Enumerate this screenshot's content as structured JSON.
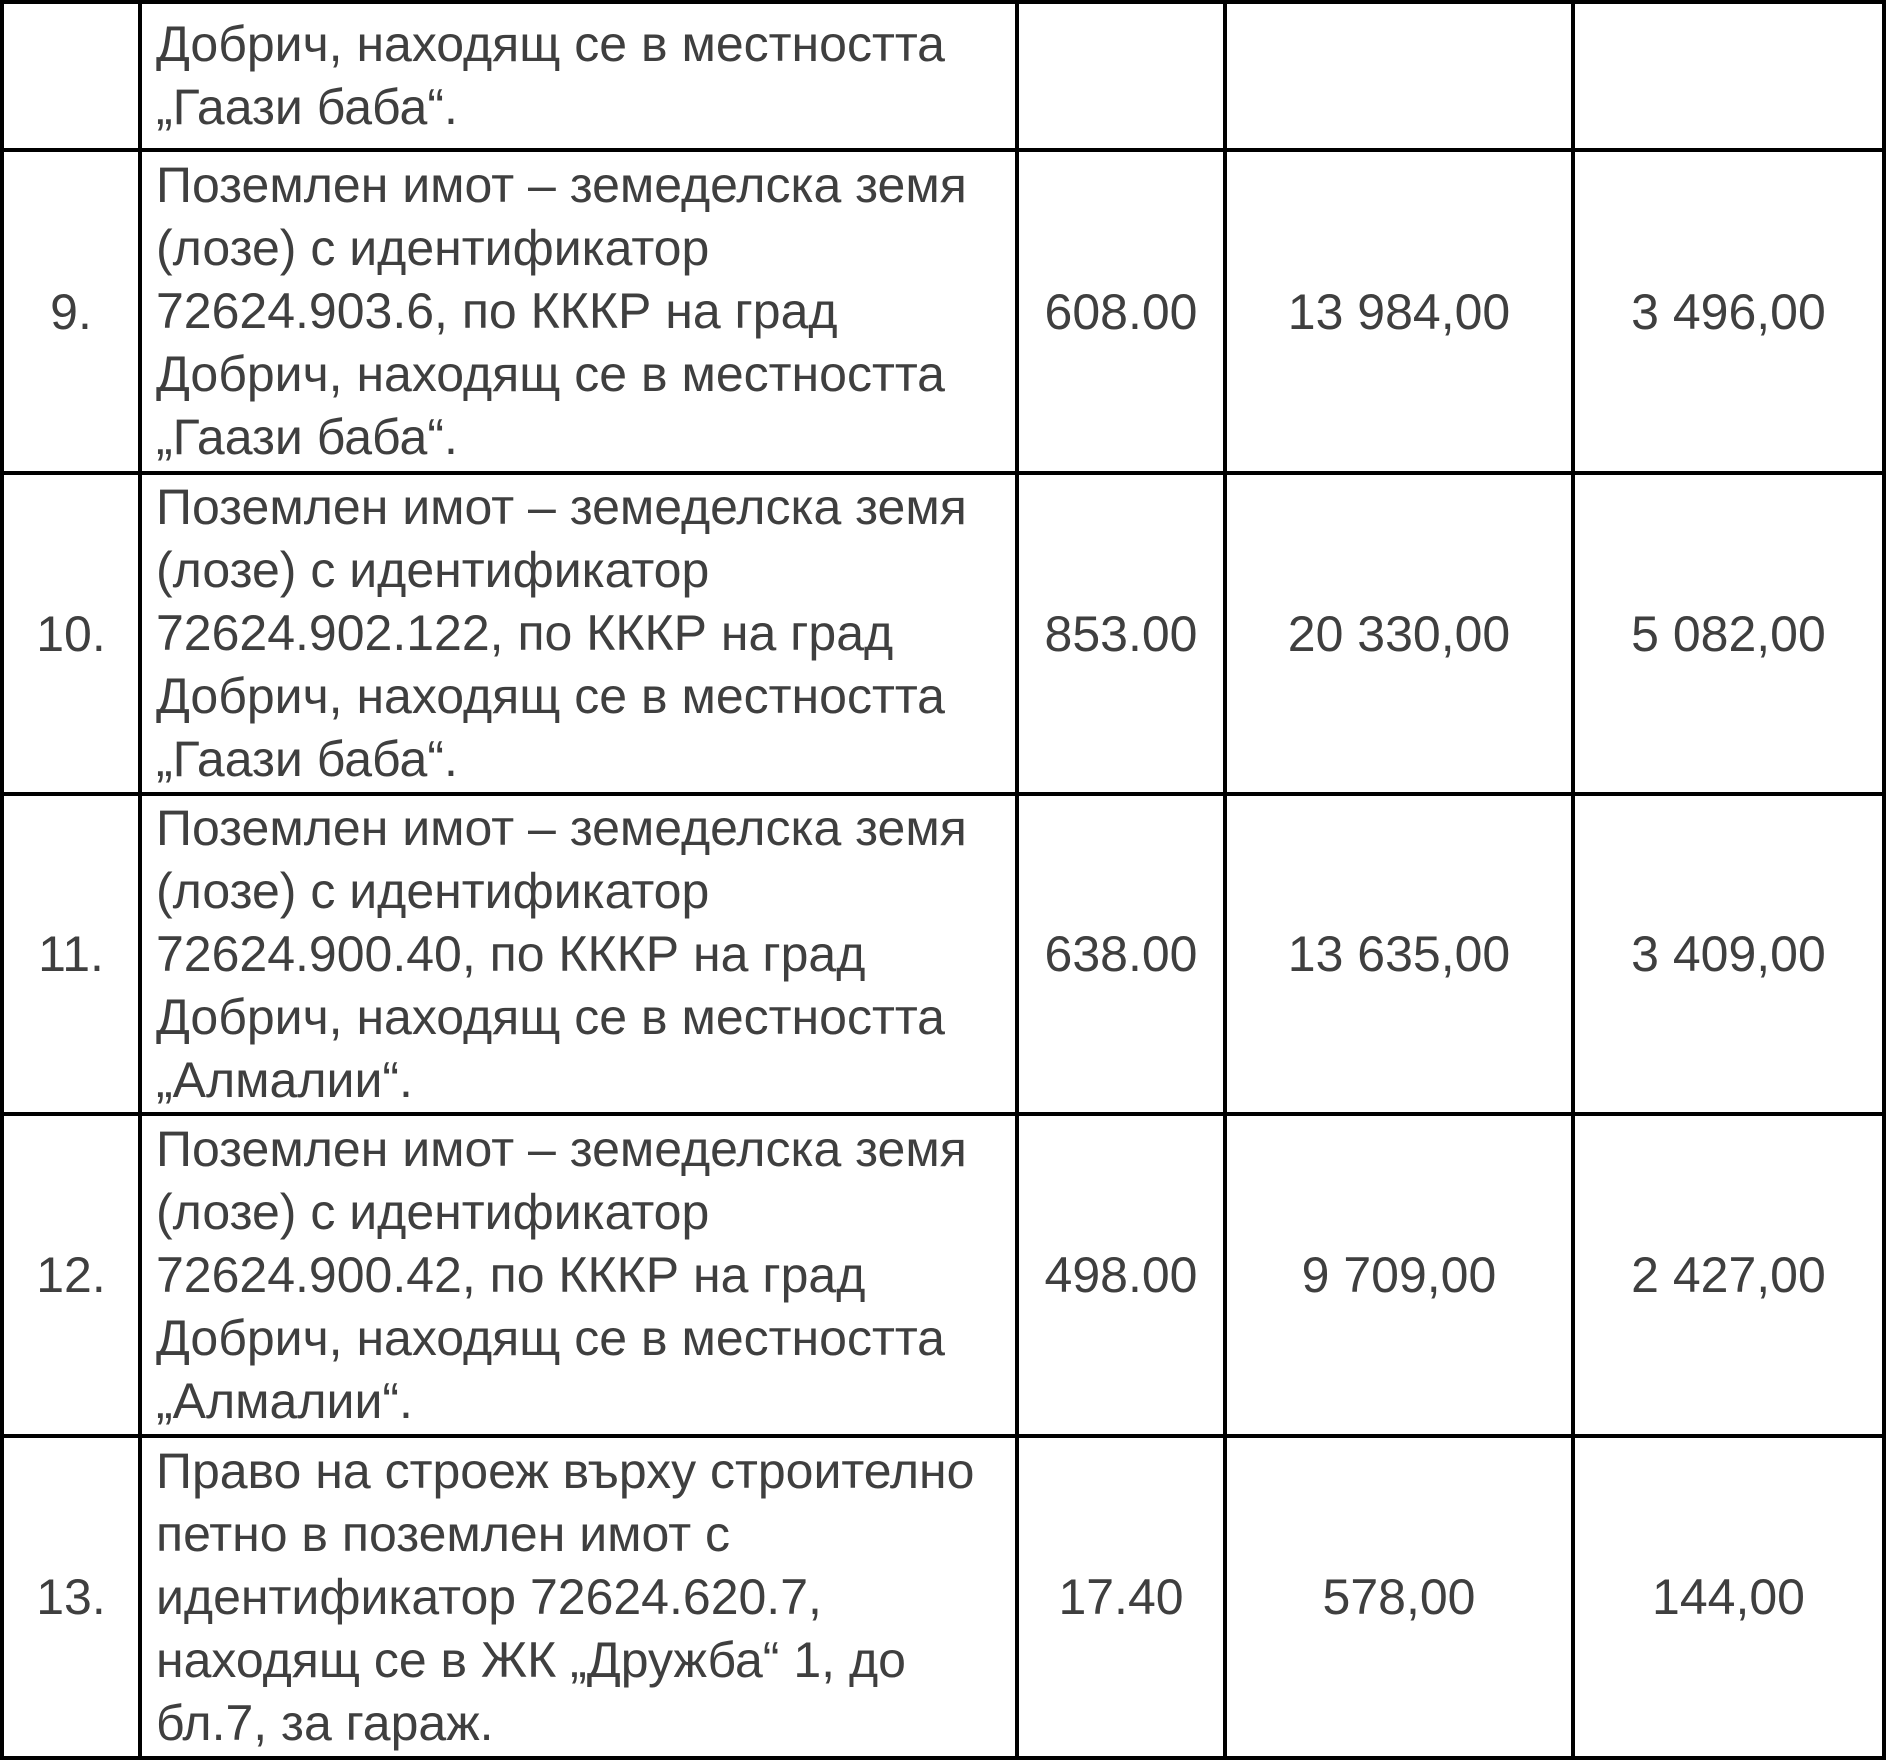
{
  "colors": {
    "background": "#ffffff",
    "text": "#3f3f3f",
    "grid_border": "#000000"
  },
  "table": {
    "rows": [
      {
        "no": "",
        "description_lines": [
          "Добрич, находящ се в местността",
          "„Гаази баба“."
        ],
        "value1": "",
        "value2": "",
        "value3": ""
      },
      {
        "no": "9.",
        "description_lines": [
          "Поземлен имот – земеделска земя",
          "(лозе) с идентификатор",
          "72624.903.6, по КККР на град",
          "Добрич, находящ се в местността",
          "„Гаази баба“."
        ],
        "value1": "608.00",
        "value2": "13 984,00",
        "value3": "3 496,00"
      },
      {
        "no": "10.",
        "description_lines": [
          "Поземлен имот – земеделска земя",
          "(лозе) с идентификатор",
          "72624.902.122, по КККР на град",
          "Добрич, находящ се в местността",
          "„Гаази баба“."
        ],
        "value1": "853.00",
        "value2": "20 330,00",
        "value3": "5 082,00"
      },
      {
        "no": "11.",
        "description_lines": [
          "Поземлен имот – земеделска земя",
          "(лозе) с идентификатор",
          "72624.900.40, по КККР на град",
          "Добрич, находящ се в местността",
          "„Алмалии“."
        ],
        "value1": "638.00",
        "value2": "13 635,00",
        "value3": "3 409,00"
      },
      {
        "no": "12.",
        "description_lines": [
          "Поземлен имот – земеделска земя",
          "(лозе) с идентификатор",
          "72624.900.42, по КККР на град",
          "Добрич, находящ се в местността",
          "„Алмалии“."
        ],
        "value1": "498.00",
        "value2": "9 709,00",
        "value3": "2 427,00"
      },
      {
        "no": "13.",
        "description_lines": [
          "Право на строеж върху строително",
          "петно в поземлен имот с",
          "идентификатор 72624.620.7,",
          "находящ се в ЖК „Дружба“ 1, до",
          "бл.7, за гараж."
        ],
        "value1": "17.40",
        "value2": "578,00",
        "value3": "144,00"
      }
    ]
  }
}
